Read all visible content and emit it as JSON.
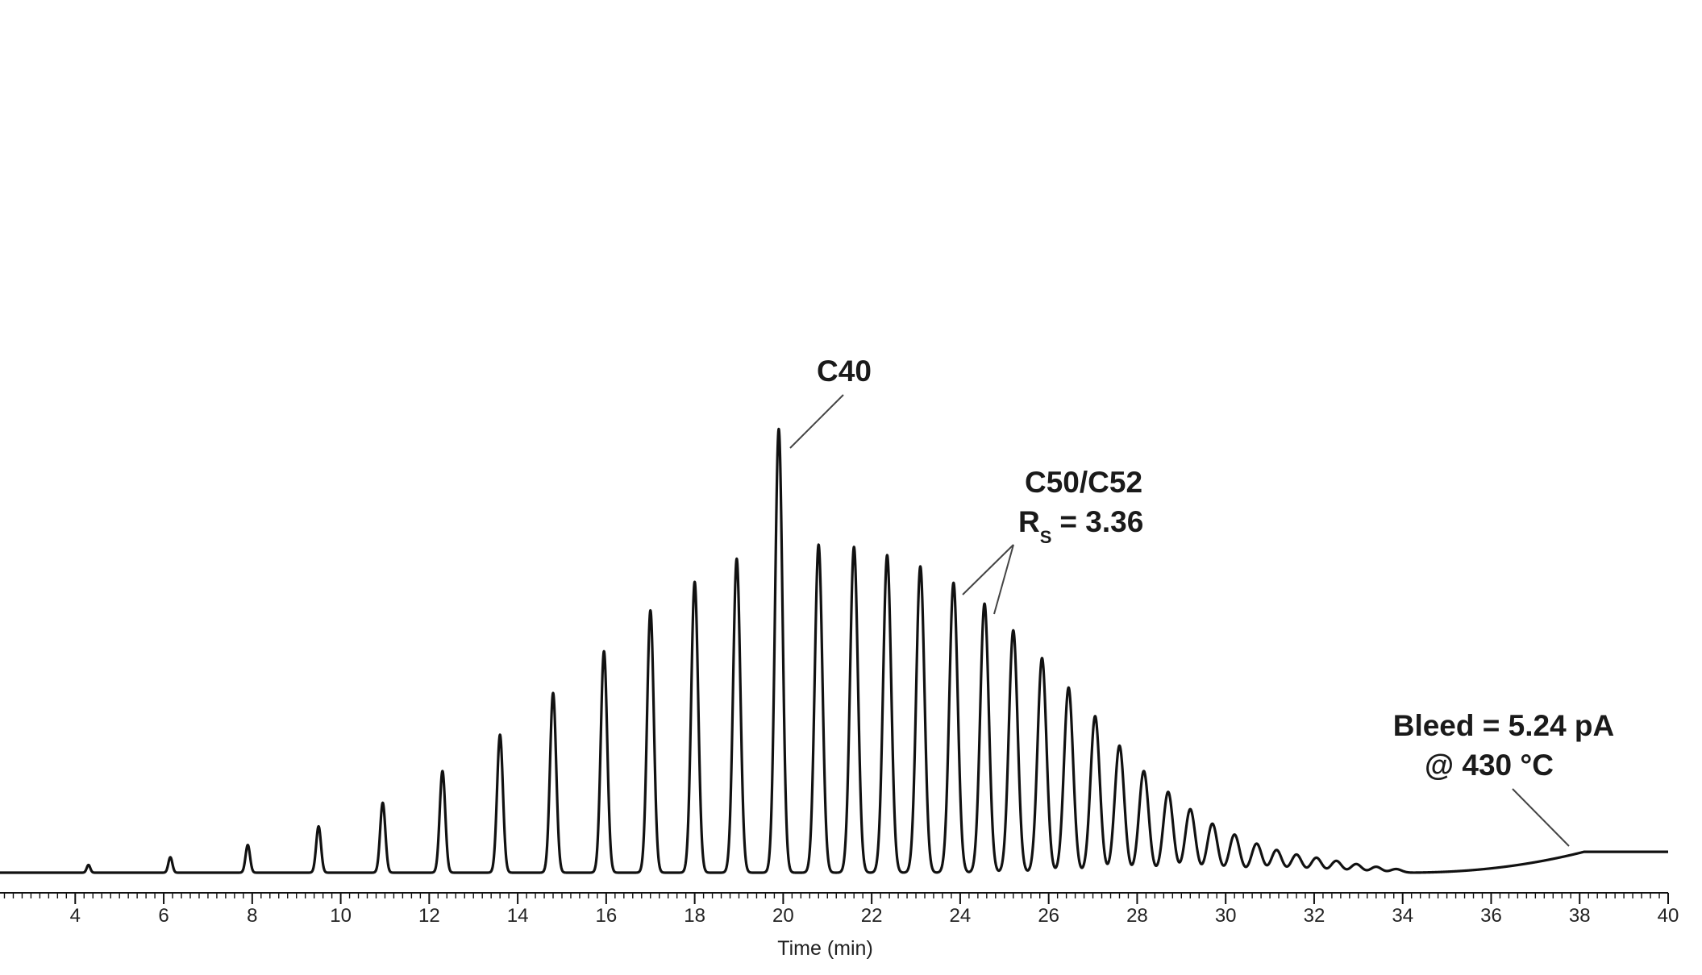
{
  "chart_data": {
    "type": "line",
    "xlabel": "Time (min)",
    "ylabel": "",
    "xlim": [
      2.3,
      40
    ],
    "ylim": [
      0,
      100
    ],
    "grid": false,
    "legend": "none",
    "x_ticks": [
      4,
      6,
      8,
      10,
      12,
      14,
      16,
      18,
      20,
      22,
      24,
      26,
      28,
      30,
      32,
      34,
      36,
      38,
      40
    ],
    "peaks": [
      {
        "x": 4.3,
        "y": 1.7
      },
      {
        "x": 6.15,
        "y": 3.4
      },
      {
        "x": 7.9,
        "y": 6.1
      },
      {
        "x": 9.5,
        "y": 10.2
      },
      {
        "x": 10.95,
        "y": 15.4
      },
      {
        "x": 12.3,
        "y": 22.4
      },
      {
        "x": 13.6,
        "y": 30.4
      },
      {
        "x": 14.8,
        "y": 39.6
      },
      {
        "x": 15.95,
        "y": 48.8
      },
      {
        "x": 17.0,
        "y": 57.8
      },
      {
        "x": 18.0,
        "y": 64.1
      },
      {
        "x": 18.95,
        "y": 69.2
      },
      {
        "x": 19.9,
        "y": 97.8
      },
      {
        "x": 20.8,
        "y": 72.3
      },
      {
        "x": 21.6,
        "y": 71.8
      },
      {
        "x": 22.35,
        "y": 70.0
      },
      {
        "x": 23.1,
        "y": 67.5
      },
      {
        "x": 23.85,
        "y": 63.9
      },
      {
        "x": 24.55,
        "y": 59.3
      },
      {
        "x": 25.2,
        "y": 53.4
      },
      {
        "x": 25.85,
        "y": 47.3
      },
      {
        "x": 26.45,
        "y": 40.8
      },
      {
        "x": 27.05,
        "y": 34.5
      },
      {
        "x": 27.6,
        "y": 28.0
      },
      {
        "x": 28.15,
        "y": 22.4
      },
      {
        "x": 28.7,
        "y": 17.8
      },
      {
        "x": 29.2,
        "y": 14.0
      },
      {
        "x": 29.7,
        "y": 10.8
      },
      {
        "x": 30.2,
        "y": 8.4
      },
      {
        "x": 30.7,
        "y": 6.4
      },
      {
        "x": 31.15,
        "y": 5.0
      },
      {
        "x": 31.6,
        "y": 4.0
      },
      {
        "x": 32.05,
        "y": 3.3
      },
      {
        "x": 32.5,
        "y": 2.6
      },
      {
        "x": 32.95,
        "y": 1.9
      },
      {
        "x": 33.4,
        "y": 1.3
      },
      {
        "x": 33.85,
        "y": 0.8
      }
    ],
    "baseline_drift": {
      "start_x": 34,
      "end_x": 38.1,
      "end_y": 4.6
    },
    "annotations": [
      {
        "id": "c40",
        "lines": [
          "C40"
        ]
      },
      {
        "id": "c50c52",
        "lines": [
          "C50/C52",
          "R",
          "S",
          "= 3.36"
        ]
      },
      {
        "id": "bleed",
        "lines": [
          "Bleed = 5.24 pA",
          "@ 430 °C"
        ]
      }
    ]
  }
}
